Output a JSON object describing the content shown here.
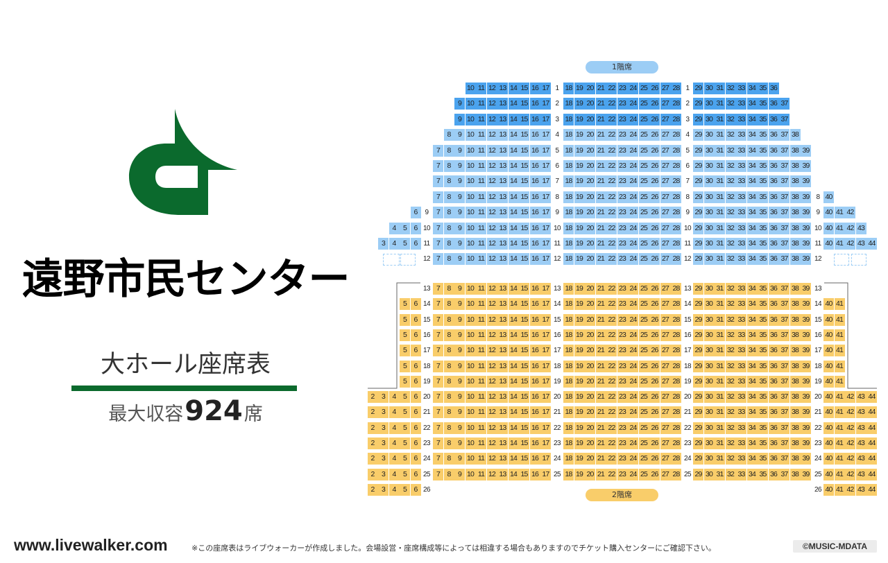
{
  "venue_title": "遠野市民センター",
  "hall_title": "大ホール座席表",
  "capacity": {
    "label": "最大収容",
    "number": "924",
    "unit": "席"
  },
  "floor_labels": {
    "first": "1階席",
    "second": "2階席"
  },
  "footer": {
    "site": "www.livewalker.com",
    "note": "※この座席表はライブウォーカーが作成しました。会場設営・座席構成等によっては相違する場合もありますのでチケット購入センターにご確認下さい。",
    "copyright": "©MUSIC-MDATA"
  },
  "colors": {
    "brand_green": "#0b6a2d",
    "first_floor_dark": "#4ba3ee",
    "first_floor_light": "#9ccdf5",
    "second_floor": "#f9cd6a"
  },
  "seating": {
    "first_floor": [
      {
        "row": "1",
        "color": "dark",
        "left": [],
        "center_left": [
          10,
          17
        ],
        "center": [
          18,
          28
        ],
        "center_right": [
          29,
          36
        ],
        "right": []
      },
      {
        "row": "2",
        "color": "dark",
        "left": [],
        "center_left": [
          9,
          17
        ],
        "center": [
          18,
          28
        ],
        "center_right": [
          29,
          37
        ],
        "right": []
      },
      {
        "row": "3",
        "color": "dark",
        "left": [],
        "center_left": [
          9,
          17
        ],
        "center": [
          18,
          28
        ],
        "center_right": [
          29,
          37
        ],
        "right": []
      },
      {
        "row": "4",
        "color": "light",
        "left": [],
        "center_left": [
          8,
          17
        ],
        "center": [
          18,
          28
        ],
        "center_right": [
          29,
          38
        ],
        "right": []
      },
      {
        "row": "5",
        "color": "light",
        "left": [],
        "center_left": [
          7,
          17
        ],
        "center": [
          18,
          28
        ],
        "center_right": [
          29,
          39
        ],
        "right": []
      },
      {
        "row": "6",
        "color": "light",
        "left": [],
        "center_left": [
          7,
          17
        ],
        "center": [
          18,
          28
        ],
        "center_right": [
          29,
          39
        ],
        "right": []
      },
      {
        "row": "7",
        "color": "light",
        "left": [],
        "center_left": [
          7,
          17
        ],
        "center": [
          18,
          28
        ],
        "center_right": [
          29,
          39
        ],
        "right": []
      },
      {
        "row": "8",
        "color": "light",
        "left": [],
        "center_left": [
          7,
          17
        ],
        "center": [
          18,
          28
        ],
        "center_right": [
          29,
          39
        ],
        "right": [
          40,
          40
        ]
      },
      {
        "row": "9",
        "color": "light",
        "left": [
          6,
          6
        ],
        "center_left": [
          7,
          17
        ],
        "center": [
          18,
          28
        ],
        "center_right": [
          29,
          39
        ],
        "right": [
          40,
          42
        ]
      },
      {
        "row": "10",
        "color": "light",
        "left": [
          4,
          6
        ],
        "center_left": [
          7,
          17
        ],
        "center": [
          18,
          28
        ],
        "center_right": [
          29,
          39
        ],
        "right": [
          40,
          43
        ]
      },
      {
        "row": "11",
        "color": "light",
        "left": [
          3,
          6
        ],
        "center_left": [
          7,
          17
        ],
        "center": [
          18,
          28
        ],
        "center_right": [
          29,
          39
        ],
        "right": [
          40,
          44
        ]
      },
      {
        "row": "12",
        "color": "light",
        "left": [],
        "center_left": [
          7,
          17
        ],
        "center": [
          18,
          28
        ],
        "center_right": [
          29,
          39
        ],
        "right": []
      }
    ],
    "second_floor": [
      {
        "row": "13",
        "left": [],
        "center_left": [
          7,
          17
        ],
        "center": [
          18,
          28
        ],
        "center_right": [
          29,
          39
        ],
        "right": []
      },
      {
        "row": "14",
        "left": [
          5,
          6
        ],
        "center_left": [
          7,
          17
        ],
        "center": [
          18,
          28
        ],
        "center_right": [
          29,
          39
        ],
        "right": [
          40,
          41
        ]
      },
      {
        "row": "15",
        "left": [
          5,
          6
        ],
        "center_left": [
          7,
          17
        ],
        "center": [
          18,
          28
        ],
        "center_right": [
          29,
          39
        ],
        "right": [
          40,
          41
        ]
      },
      {
        "row": "16",
        "left": [
          5,
          6
        ],
        "center_left": [
          7,
          17
        ],
        "center": [
          18,
          28
        ],
        "center_right": [
          29,
          39
        ],
        "right": [
          40,
          41
        ]
      },
      {
        "row": "17",
        "left": [
          5,
          6
        ],
        "center_left": [
          7,
          17
        ],
        "center": [
          18,
          28
        ],
        "center_right": [
          29,
          39
        ],
        "right": [
          40,
          41
        ]
      },
      {
        "row": "18",
        "left": [
          5,
          6
        ],
        "center_left": [
          7,
          17
        ],
        "center": [
          18,
          28
        ],
        "center_right": [
          29,
          39
        ],
        "right": [
          40,
          41
        ]
      },
      {
        "row": "19",
        "left": [
          5,
          6
        ],
        "center_left": [
          7,
          17
        ],
        "center": [
          18,
          28
        ],
        "center_right": [
          29,
          39
        ],
        "right": [
          40,
          41
        ]
      },
      {
        "row": "20",
        "left": [
          2,
          6
        ],
        "center_left": [
          7,
          17
        ],
        "center": [
          18,
          28
        ],
        "center_right": [
          29,
          39
        ],
        "right": [
          40,
          44
        ]
      },
      {
        "row": "21",
        "left": [
          2,
          6
        ],
        "center_left": [
          7,
          17
        ],
        "center": [
          18,
          28
        ],
        "center_right": [
          29,
          39
        ],
        "right": [
          40,
          44
        ]
      },
      {
        "row": "22",
        "left": [
          2,
          6
        ],
        "center_left": [
          7,
          17
        ],
        "center": [
          18,
          28
        ],
        "center_right": [
          29,
          39
        ],
        "right": [
          40,
          44
        ]
      },
      {
        "row": "23",
        "left": [
          2,
          6
        ],
        "center_left": [
          7,
          17
        ],
        "center": [
          18,
          28
        ],
        "center_right": [
          29,
          39
        ],
        "right": [
          40,
          44
        ]
      },
      {
        "row": "24",
        "left": [
          2,
          6
        ],
        "center_left": [
          7,
          17
        ],
        "center": [
          18,
          28
        ],
        "center_right": [
          29,
          39
        ],
        "right": [
          40,
          44
        ]
      },
      {
        "row": "25",
        "left": [
          2,
          6
        ],
        "center_left": [
          7,
          17
        ],
        "center": [
          18,
          28
        ],
        "center_right": [
          29,
          39
        ],
        "right": [
          40,
          44
        ]
      },
      {
        "row": "26",
        "left": [
          2,
          6
        ],
        "center_left": [],
        "center": [],
        "center_right": [],
        "right": [
          40,
          44
        ]
      }
    ]
  }
}
